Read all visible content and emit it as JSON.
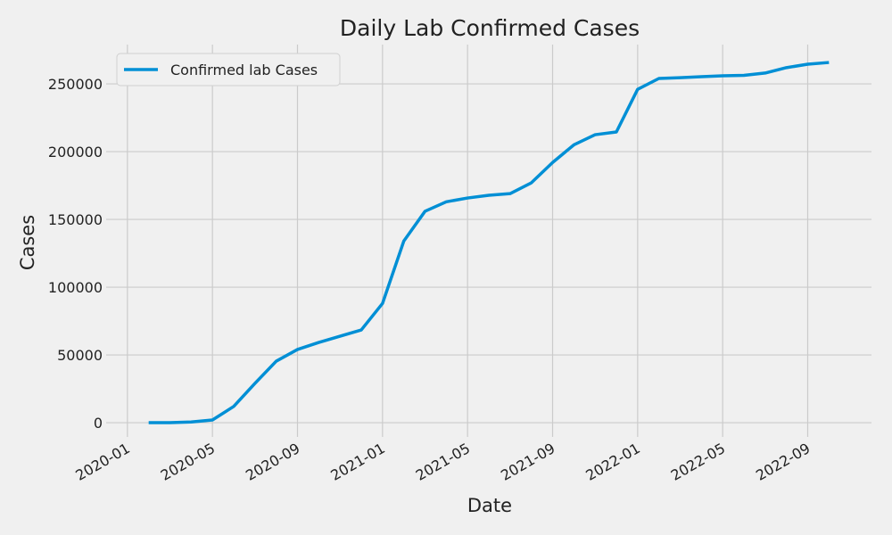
{
  "chart_data": {
    "type": "line",
    "title": "Daily Lab Confirmed Cases",
    "x_label": "Date",
    "y_label": "Cases",
    "x": [
      "2020-02",
      "2020-03",
      "2020-04",
      "2020-05",
      "2020-06",
      "2020-07",
      "2020-08",
      "2020-09",
      "2020-10",
      "2020-11",
      "2020-12",
      "2021-01",
      "2021-02",
      "2021-03",
      "2021-04",
      "2021-05",
      "2021-06",
      "2021-07",
      "2021-08",
      "2021-09",
      "2021-10",
      "2021-11",
      "2021-12",
      "2022-01",
      "2022-02",
      "2022-03",
      "2022-04",
      "2022-05",
      "2022-06",
      "2022-07",
      "2022-08",
      "2022-09",
      "2022-10"
    ],
    "series": [
      {
        "name": "Confirmed lab Cases",
        "color": "#008fd5",
        "values": [
          0,
          0,
          500,
          2000,
          12000,
          29000,
          45400,
          54000,
          59200,
          63800,
          68400,
          88000,
          134000,
          156000,
          163000,
          165800,
          167800,
          169000,
          177000,
          192000,
          205000,
          212500,
          214500,
          246000,
          254000,
          254600,
          255300,
          256000,
          256300,
          258000,
          262000,
          264500,
          265800
        ]
      }
    ],
    "xlim": [
      "2019-12",
      "2022-12"
    ],
    "xticks": [
      "2020-01",
      "2020-05",
      "2020-09",
      "2021-01",
      "2021-05",
      "2021-09",
      "2022-01",
      "2022-05",
      "2022-09"
    ],
    "ylim": [
      -10500,
      279000
    ],
    "yticks": [
      0,
      50000,
      100000,
      150000,
      200000,
      250000
    ],
    "grid": true,
    "legend": "upper left"
  }
}
